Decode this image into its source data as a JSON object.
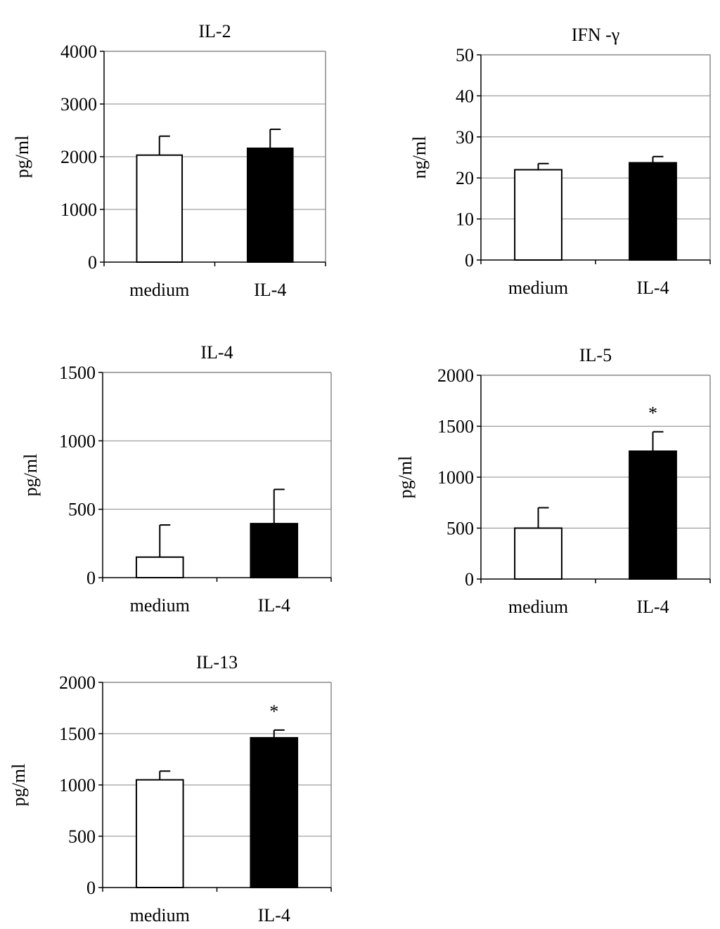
{
  "chart_data": [
    {
      "type": "bar",
      "title": "IL-2",
      "ylabel": "pg/ml",
      "xlabel": "",
      "categories": [
        "medium",
        "IL-4"
      ],
      "values": [
        2030,
        2160
      ],
      "error_plus": [
        360,
        360
      ],
      "bar_fills": [
        "#ffffff",
        "#000000"
      ],
      "ylim": [
        0,
        4000
      ],
      "yticks": [
        "0",
        "1000",
        "2000",
        "3000",
        "4000"
      ],
      "annotations": [
        "",
        ""
      ],
      "grid": true
    },
    {
      "type": "bar",
      "title": "IFN -γ",
      "ylabel": "ng/ml",
      "xlabel": "",
      "categories": [
        "medium",
        "IL-4"
      ],
      "values": [
        22,
        23.7
      ],
      "error_plus": [
        1.5,
        1.5
      ],
      "bar_fills": [
        "#ffffff",
        "#000000"
      ],
      "ylim": [
        0,
        50
      ],
      "yticks": [
        "0",
        "10",
        "20",
        "30",
        "40",
        "50"
      ],
      "annotations": [
        "",
        ""
      ],
      "grid": true
    },
    {
      "type": "bar",
      "title": "IL-4",
      "ylabel": "pg/ml",
      "xlabel": "",
      "categories": [
        "medium",
        "IL-4"
      ],
      "values": [
        150,
        395
      ],
      "error_plus": [
        235,
        250
      ],
      "bar_fills": [
        "#ffffff",
        "#000000"
      ],
      "ylim": [
        0,
        1500
      ],
      "yticks": [
        "0",
        "500",
        "1000",
        "1500"
      ],
      "annotations": [
        "",
        ""
      ],
      "grid": true
    },
    {
      "type": "bar",
      "title": "IL-5",
      "ylabel": "pg/ml",
      "xlabel": "",
      "categories": [
        "medium",
        "IL-4"
      ],
      "values": [
        500,
        1255
      ],
      "error_plus": [
        200,
        190
      ],
      "bar_fills": [
        "#ffffff",
        "#000000"
      ],
      "ylim": [
        0,
        2000
      ],
      "yticks": [
        "0",
        "500",
        "1000",
        "1500",
        "2000"
      ],
      "annotations": [
        "",
        "*"
      ],
      "grid": true
    },
    {
      "type": "bar",
      "title": "IL-13",
      "ylabel": "pg/ml",
      "xlabel": "",
      "categories": [
        "medium",
        "IL-4"
      ],
      "values": [
        1050,
        1460
      ],
      "error_plus": [
        85,
        75
      ],
      "bar_fills": [
        "#ffffff",
        "#000000"
      ],
      "ylim": [
        0,
        2000
      ],
      "yticks": [
        "0",
        "500",
        "1000",
        "1500",
        "2000"
      ],
      "annotations": [
        "",
        "*"
      ],
      "grid": true
    }
  ]
}
